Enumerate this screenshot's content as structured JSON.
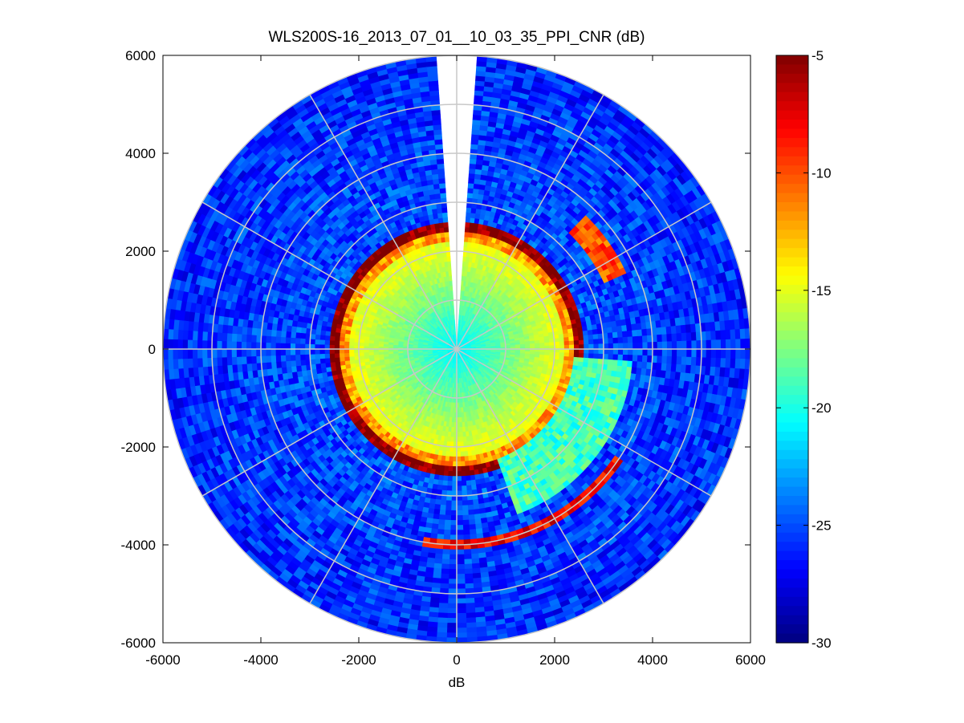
{
  "chart_data": {
    "type": "heatmap",
    "subtype": "polar-ppi",
    "title": "WLS200S-16_2013_07_01__10_03_35_PPI_CNR (dB)",
    "xlabel": "dB",
    "ylabel": "",
    "xlim": [
      -6000,
      6000
    ],
    "ylim": [
      -6000,
      6000
    ],
    "xticks": [
      "-6000",
      "-4000",
      "-2000",
      "0",
      "2000",
      "4000",
      "6000"
    ],
    "yticks": [
      "6000",
      "4000",
      "2000",
      "0",
      "-2000",
      "-4000",
      "-6000"
    ],
    "colorbar": {
      "colormap": "jet",
      "range": [
        -30,
        -5
      ],
      "ticks": [
        "-5",
        "-10",
        "-15",
        "-20",
        "-25",
        "-30"
      ]
    },
    "grid": true,
    "max_range_m": 6000,
    "range_ring_step_m": 1000,
    "azimuth_grid_step_deg": 30,
    "missing_sector_deg": [
      -4,
      4
    ],
    "cnr_vs_range": [
      {
        "range_m": 0,
        "cnr_db": -21
      },
      {
        "range_m": 1000,
        "cnr_db": -18
      },
      {
        "range_m": 2000,
        "cnr_db": -15
      },
      {
        "range_m": 2200,
        "cnr_db": -12
      },
      {
        "range_m": 2400,
        "cnr_db": -5
      },
      {
        "range_m": 2600,
        "cnr_db": -25
      },
      {
        "range_m": 6000,
        "cnr_db": -26
      }
    ],
    "notable_features": [
      {
        "name": "strong return arc",
        "azimuth_deg": [
          125,
          190
        ],
        "range_m": [
          3900,
          4100
        ],
        "cnr_db": -8
      },
      {
        "name": "elevated sector",
        "azimuth_deg": [
          95,
          160
        ],
        "range_m": [
          2400,
          3600
        ],
        "cnr_db": -19
      },
      {
        "name": "isolated strong return",
        "azimuth_deg": [
          45,
          65
        ],
        "range_m": [
          3300,
          3800
        ],
        "cnr_db": -10
      }
    ]
  }
}
